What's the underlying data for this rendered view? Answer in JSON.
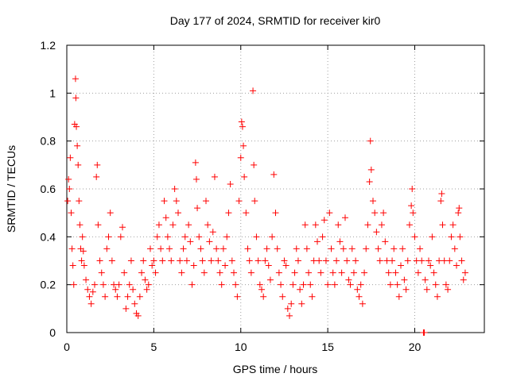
{
  "chart_data": {
    "type": "scatter",
    "title": "Day 177 of 2024, SRMTID for receiver kir0",
    "xlabel": "GPS time / hours",
    "ylabel": "SRMTID / TECUs",
    "xlim": [
      0,
      24
    ],
    "ylim": [
      0,
      1.2
    ],
    "x_ticks": [
      0,
      5,
      10,
      15,
      20
    ],
    "x_tick_labels": [
      "0",
      "5",
      "10",
      "15",
      "20"
    ],
    "y_ticks": [
      0,
      0.2,
      0.4,
      0.6,
      0.8,
      1,
      1.2
    ],
    "y_tick_labels": [
      "0",
      "0.2",
      "0.4",
      "0.6",
      "0.8",
      "1",
      "1.2"
    ],
    "grid": true,
    "marker": "+",
    "series": [
      {
        "name": "SRMTID",
        "color": "#ff0000",
        "points": [
          [
            0.05,
            0.55
          ],
          [
            0.1,
            0.64
          ],
          [
            0.15,
            0.6
          ],
          [
            0.2,
            0.73
          ],
          [
            0.25,
            0.5
          ],
          [
            0.3,
            0.35
          ],
          [
            0.35,
            0.28
          ],
          [
            0.4,
            0.2
          ],
          [
            0.45,
            0.87
          ],
          [
            0.5,
            1.06
          ],
          [
            0.52,
            0.98
          ],
          [
            0.55,
            0.86
          ],
          [
            0.6,
            0.78
          ],
          [
            0.65,
            0.7
          ],
          [
            0.7,
            0.55
          ],
          [
            0.75,
            0.45
          ],
          [
            0.8,
            0.35
          ],
          [
            0.85,
            0.3
          ],
          [
            0.9,
            0.4
          ],
          [
            0.95,
            0.34
          ],
          [
            1.0,
            0.28
          ],
          [
            1.1,
            0.22
          ],
          [
            1.2,
            0.18
          ],
          [
            1.3,
            0.15
          ],
          [
            1.4,
            0.12
          ],
          [
            1.5,
            0.17
          ],
          [
            1.6,
            0.2
          ],
          [
            1.7,
            0.65
          ],
          [
            1.75,
            0.7
          ],
          [
            1.8,
            0.45
          ],
          [
            1.9,
            0.3
          ],
          [
            2.0,
            0.25
          ],
          [
            2.1,
            0.2
          ],
          [
            2.2,
            0.15
          ],
          [
            2.3,
            0.35
          ],
          [
            2.4,
            0.4
          ],
          [
            2.5,
            0.5
          ],
          [
            2.6,
            0.3
          ],
          [
            2.7,
            0.2
          ],
          [
            2.8,
            0.18
          ],
          [
            2.9,
            0.15
          ],
          [
            3.0,
            0.2
          ],
          [
            3.1,
            0.4
          ],
          [
            3.2,
            0.44
          ],
          [
            3.3,
            0.25
          ],
          [
            3.4,
            0.1
          ],
          [
            3.5,
            0.15
          ],
          [
            3.6,
            0.2
          ],
          [
            3.7,
            0.3
          ],
          [
            3.8,
            0.18
          ],
          [
            3.9,
            0.12
          ],
          [
            4.0,
            0.08
          ],
          [
            4.1,
            0.07
          ],
          [
            4.2,
            0.15
          ],
          [
            4.3,
            0.25
          ],
          [
            4.4,
            0.3
          ],
          [
            4.5,
            0.22
          ],
          [
            4.6,
            0.18
          ],
          [
            4.7,
            0.2
          ],
          [
            4.8,
            0.35
          ],
          [
            4.9,
            0.28
          ],
          [
            5.0,
            0.3
          ],
          [
            5.1,
            0.25
          ],
          [
            5.2,
            0.4
          ],
          [
            5.3,
            0.45
          ],
          [
            5.4,
            0.35
          ],
          [
            5.5,
            0.3
          ],
          [
            5.6,
            0.55
          ],
          [
            5.7,
            0.48
          ],
          [
            5.8,
            0.4
          ],
          [
            5.9,
            0.35
          ],
          [
            6.0,
            0.3
          ],
          [
            6.1,
            0.45
          ],
          [
            6.2,
            0.6
          ],
          [
            6.3,
            0.55
          ],
          [
            6.4,
            0.5
          ],
          [
            6.5,
            0.3
          ],
          [
            6.6,
            0.25
          ],
          [
            6.7,
            0.35
          ],
          [
            6.8,
            0.4
          ],
          [
            6.9,
            0.3
          ],
          [
            7.0,
            0.45
          ],
          [
            7.1,
            0.38
          ],
          [
            7.2,
            0.2
          ],
          [
            7.3,
            0.28
          ],
          [
            7.4,
            0.71
          ],
          [
            7.45,
            0.64
          ],
          [
            7.5,
            0.52
          ],
          [
            7.6,
            0.4
          ],
          [
            7.7,
            0.35
          ],
          [
            7.8,
            0.3
          ],
          [
            7.9,
            0.25
          ],
          [
            8.0,
            0.55
          ],
          [
            8.1,
            0.45
          ],
          [
            8.2,
            0.38
          ],
          [
            8.3,
            0.3
          ],
          [
            8.4,
            0.42
          ],
          [
            8.5,
            0.65
          ],
          [
            8.6,
            0.35
          ],
          [
            8.7,
            0.3
          ],
          [
            8.8,
            0.25
          ],
          [
            8.9,
            0.2
          ],
          [
            9.0,
            0.35
          ],
          [
            9.1,
            0.28
          ],
          [
            9.2,
            0.4
          ],
          [
            9.3,
            0.5
          ],
          [
            9.4,
            0.62
          ],
          [
            9.5,
            0.3
          ],
          [
            9.6,
            0.25
          ],
          [
            9.7,
            0.2
          ],
          [
            9.8,
            0.15
          ],
          [
            9.9,
            0.55
          ],
          [
            10.0,
            0.73
          ],
          [
            10.05,
            0.88
          ],
          [
            10.1,
            0.86
          ],
          [
            10.15,
            0.78
          ],
          [
            10.2,
            0.65
          ],
          [
            10.3,
            0.5
          ],
          [
            10.4,
            0.35
          ],
          [
            10.5,
            0.3
          ],
          [
            10.6,
            0.25
          ],
          [
            10.7,
            1.01
          ],
          [
            10.75,
            0.7
          ],
          [
            10.8,
            0.55
          ],
          [
            10.9,
            0.4
          ],
          [
            11.0,
            0.3
          ],
          [
            11.1,
            0.2
          ],
          [
            11.2,
            0.18
          ],
          [
            11.3,
            0.15
          ],
          [
            11.4,
            0.3
          ],
          [
            11.5,
            0.35
          ],
          [
            11.6,
            0.28
          ],
          [
            11.7,
            0.22
          ],
          [
            11.8,
            0.4
          ],
          [
            11.9,
            0.66
          ],
          [
            12.0,
            0.5
          ],
          [
            12.1,
            0.35
          ],
          [
            12.2,
            0.25
          ],
          [
            12.3,
            0.2
          ],
          [
            12.4,
            0.15
          ],
          [
            12.5,
            0.3
          ],
          [
            12.6,
            0.28
          ],
          [
            12.7,
            0.1
          ],
          [
            12.8,
            0.07
          ],
          [
            12.9,
            0.12
          ],
          [
            13.0,
            0.2
          ],
          [
            13.1,
            0.25
          ],
          [
            13.2,
            0.35
          ],
          [
            13.3,
            0.3
          ],
          [
            13.4,
            0.18
          ],
          [
            13.5,
            0.12
          ],
          [
            13.6,
            0.2
          ],
          [
            13.7,
            0.45
          ],
          [
            13.8,
            0.35
          ],
          [
            13.9,
            0.25
          ],
          [
            14.0,
            0.2
          ],
          [
            14.1,
            0.15
          ],
          [
            14.2,
            0.3
          ],
          [
            14.3,
            0.45
          ],
          [
            14.4,
            0.38
          ],
          [
            14.5,
            0.3
          ],
          [
            14.6,
            0.25
          ],
          [
            14.7,
            0.4
          ],
          [
            14.8,
            0.47
          ],
          [
            14.9,
            0.3
          ],
          [
            15.0,
            0.2
          ],
          [
            15.1,
            0.5
          ],
          [
            15.2,
            0.35
          ],
          [
            15.3,
            0.25
          ],
          [
            15.4,
            0.2
          ],
          [
            15.5,
            0.3
          ],
          [
            15.6,
            0.45
          ],
          [
            15.7,
            0.38
          ],
          [
            15.8,
            0.25
          ],
          [
            15.9,
            0.35
          ],
          [
            16.0,
            0.48
          ],
          [
            16.1,
            0.3
          ],
          [
            16.2,
            0.22
          ],
          [
            16.3,
            0.2
          ],
          [
            16.4,
            0.35
          ],
          [
            16.5,
            0.25
          ],
          [
            16.6,
            0.3
          ],
          [
            16.7,
            0.18
          ],
          [
            16.8,
            0.15
          ],
          [
            16.9,
            0.2
          ],
          [
            17.0,
            0.12
          ],
          [
            17.1,
            0.25
          ],
          [
            17.2,
            0.35
          ],
          [
            17.3,
            0.45
          ],
          [
            17.4,
            0.63
          ],
          [
            17.45,
            0.8
          ],
          [
            17.5,
            0.68
          ],
          [
            17.6,
            0.55
          ],
          [
            17.7,
            0.5
          ],
          [
            17.8,
            0.42
          ],
          [
            17.9,
            0.35
          ],
          [
            18.0,
            0.3
          ],
          [
            18.1,
            0.45
          ],
          [
            18.2,
            0.5
          ],
          [
            18.3,
            0.38
          ],
          [
            18.4,
            0.3
          ],
          [
            18.5,
            0.25
          ],
          [
            18.6,
            0.2
          ],
          [
            18.7,
            0.3
          ],
          [
            18.8,
            0.35
          ],
          [
            18.9,
            0.25
          ],
          [
            19.0,
            0.2
          ],
          [
            19.1,
            0.15
          ],
          [
            19.2,
            0.28
          ],
          [
            19.3,
            0.35
          ],
          [
            19.4,
            0.22
          ],
          [
            19.5,
            0.18
          ],
          [
            19.6,
            0.3
          ],
          [
            19.7,
            0.45
          ],
          [
            19.8,
            0.53
          ],
          [
            19.85,
            0.6
          ],
          [
            19.9,
            0.5
          ],
          [
            20.0,
            0.4
          ],
          [
            20.1,
            0.3
          ],
          [
            20.2,
            0.25
          ],
          [
            20.3,
            0.35
          ],
          [
            20.4,
            0.3
          ],
          [
            20.5,
            0.0
          ],
          [
            20.55,
            0.0
          ],
          [
            20.6,
            0.22
          ],
          [
            20.7,
            0.18
          ],
          [
            20.8,
            0.3
          ],
          [
            20.9,
            0.28
          ],
          [
            21.0,
            0.4
          ],
          [
            21.1,
            0.25
          ],
          [
            21.2,
            0.2
          ],
          [
            21.3,
            0.15
          ],
          [
            21.4,
            0.3
          ],
          [
            21.5,
            0.55
          ],
          [
            21.55,
            0.58
          ],
          [
            21.6,
            0.45
          ],
          [
            21.7,
            0.3
          ],
          [
            21.8,
            0.2
          ],
          [
            21.9,
            0.18
          ],
          [
            22.0,
            0.3
          ],
          [
            22.1,
            0.4
          ],
          [
            22.2,
            0.45
          ],
          [
            22.3,
            0.35
          ],
          [
            22.4,
            0.28
          ],
          [
            22.5,
            0.5
          ],
          [
            22.55,
            0.52
          ],
          [
            22.6,
            0.4
          ],
          [
            22.7,
            0.3
          ],
          [
            22.8,
            0.22
          ],
          [
            22.9,
            0.25
          ]
        ]
      }
    ]
  }
}
